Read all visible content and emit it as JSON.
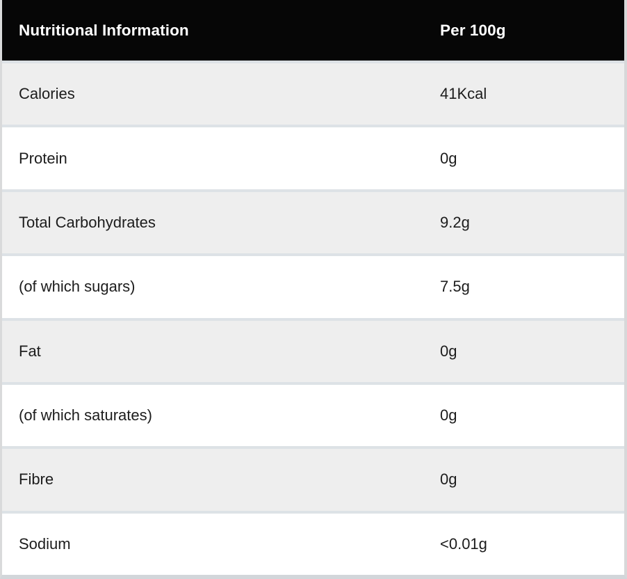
{
  "table": {
    "title": "Nutritional Information",
    "header": {
      "label": "Nutritional Information",
      "value": "Per 100g"
    },
    "rows": [
      {
        "label": "Calories",
        "value": "41Kcal"
      },
      {
        "label": "Protein",
        "value": "0g"
      },
      {
        "label": "Total Carbohydrates",
        "value": "9.2g"
      },
      {
        "label": "(of which sugars)",
        "value": "7.5g"
      },
      {
        "label": "Fat",
        "value": "0g"
      },
      {
        "label": "(of which saturates)",
        "value": "0g"
      },
      {
        "label": "Fibre",
        "value": "0g"
      },
      {
        "label": "Sodium",
        "value": "<0.01g"
      }
    ],
    "colors": {
      "header_background": "#060606",
      "header_text": "#ffffff",
      "row_alt_background": "#eeeeee",
      "row_background": "#ffffff",
      "row_divider": "#dde2e6",
      "outer_border": "#d7d8d9",
      "body_text": "#1c1c1c"
    }
  },
  "chart_data": {
    "type": "table",
    "title": "Nutritional Information",
    "columns": [
      "Nutritional Information",
      "Per 100g"
    ],
    "rows": [
      [
        "Calories",
        "41Kcal"
      ],
      [
        "Protein",
        "0g"
      ],
      [
        "Total Carbohydrates",
        "9.2g"
      ],
      [
        "(of which sugars)",
        "7.5g"
      ],
      [
        "Fat",
        "0g"
      ],
      [
        "(of which saturates)",
        "0g"
      ],
      [
        "Fibre",
        "0g"
      ],
      [
        "Sodium",
        "<0.01g"
      ]
    ]
  }
}
